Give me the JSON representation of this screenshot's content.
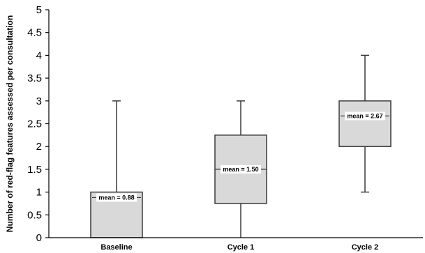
{
  "chart_data": {
    "type": "box",
    "title": "",
    "xlabel": "",
    "ylabel": "Number of red-flag features assessed per consultation",
    "ylim": [
      0,
      5
    ],
    "yticks": [
      0,
      0.5,
      1,
      1.5,
      2,
      2.5,
      3,
      3.5,
      4,
      4.5,
      5
    ],
    "ytick_labels": [
      "0",
      "0.5",
      "1",
      "1.5",
      "2",
      "2.5",
      "3",
      "3.5",
      "4",
      "4.5",
      "5"
    ],
    "grid": false,
    "categories": [
      "Baseline",
      "Cycle 1",
      "Cycle 2"
    ],
    "boxes": [
      {
        "category": "Baseline",
        "min": 0,
        "q1": 0,
        "median": 0,
        "q3": 1,
        "max": 3,
        "mean": 0.88,
        "mean_label": "mean = 0.88"
      },
      {
        "category": "Cycle 1",
        "min": 0,
        "q1": 0.75,
        "median": 1.5,
        "q3": 2.25,
        "max": 3,
        "mean": 1.5,
        "mean_label": "mean = 1.50"
      },
      {
        "category": "Cycle 2",
        "min": 1,
        "q1": 2,
        "median": 3,
        "q3": 3,
        "max": 4,
        "mean": 2.67,
        "mean_label": "mean = 2.67"
      }
    ],
    "colors": {
      "box_fill": "#d9d9d9",
      "line": "#3a3a3a",
      "axis": "#000000",
      "label_bg": "#ffffff"
    }
  }
}
